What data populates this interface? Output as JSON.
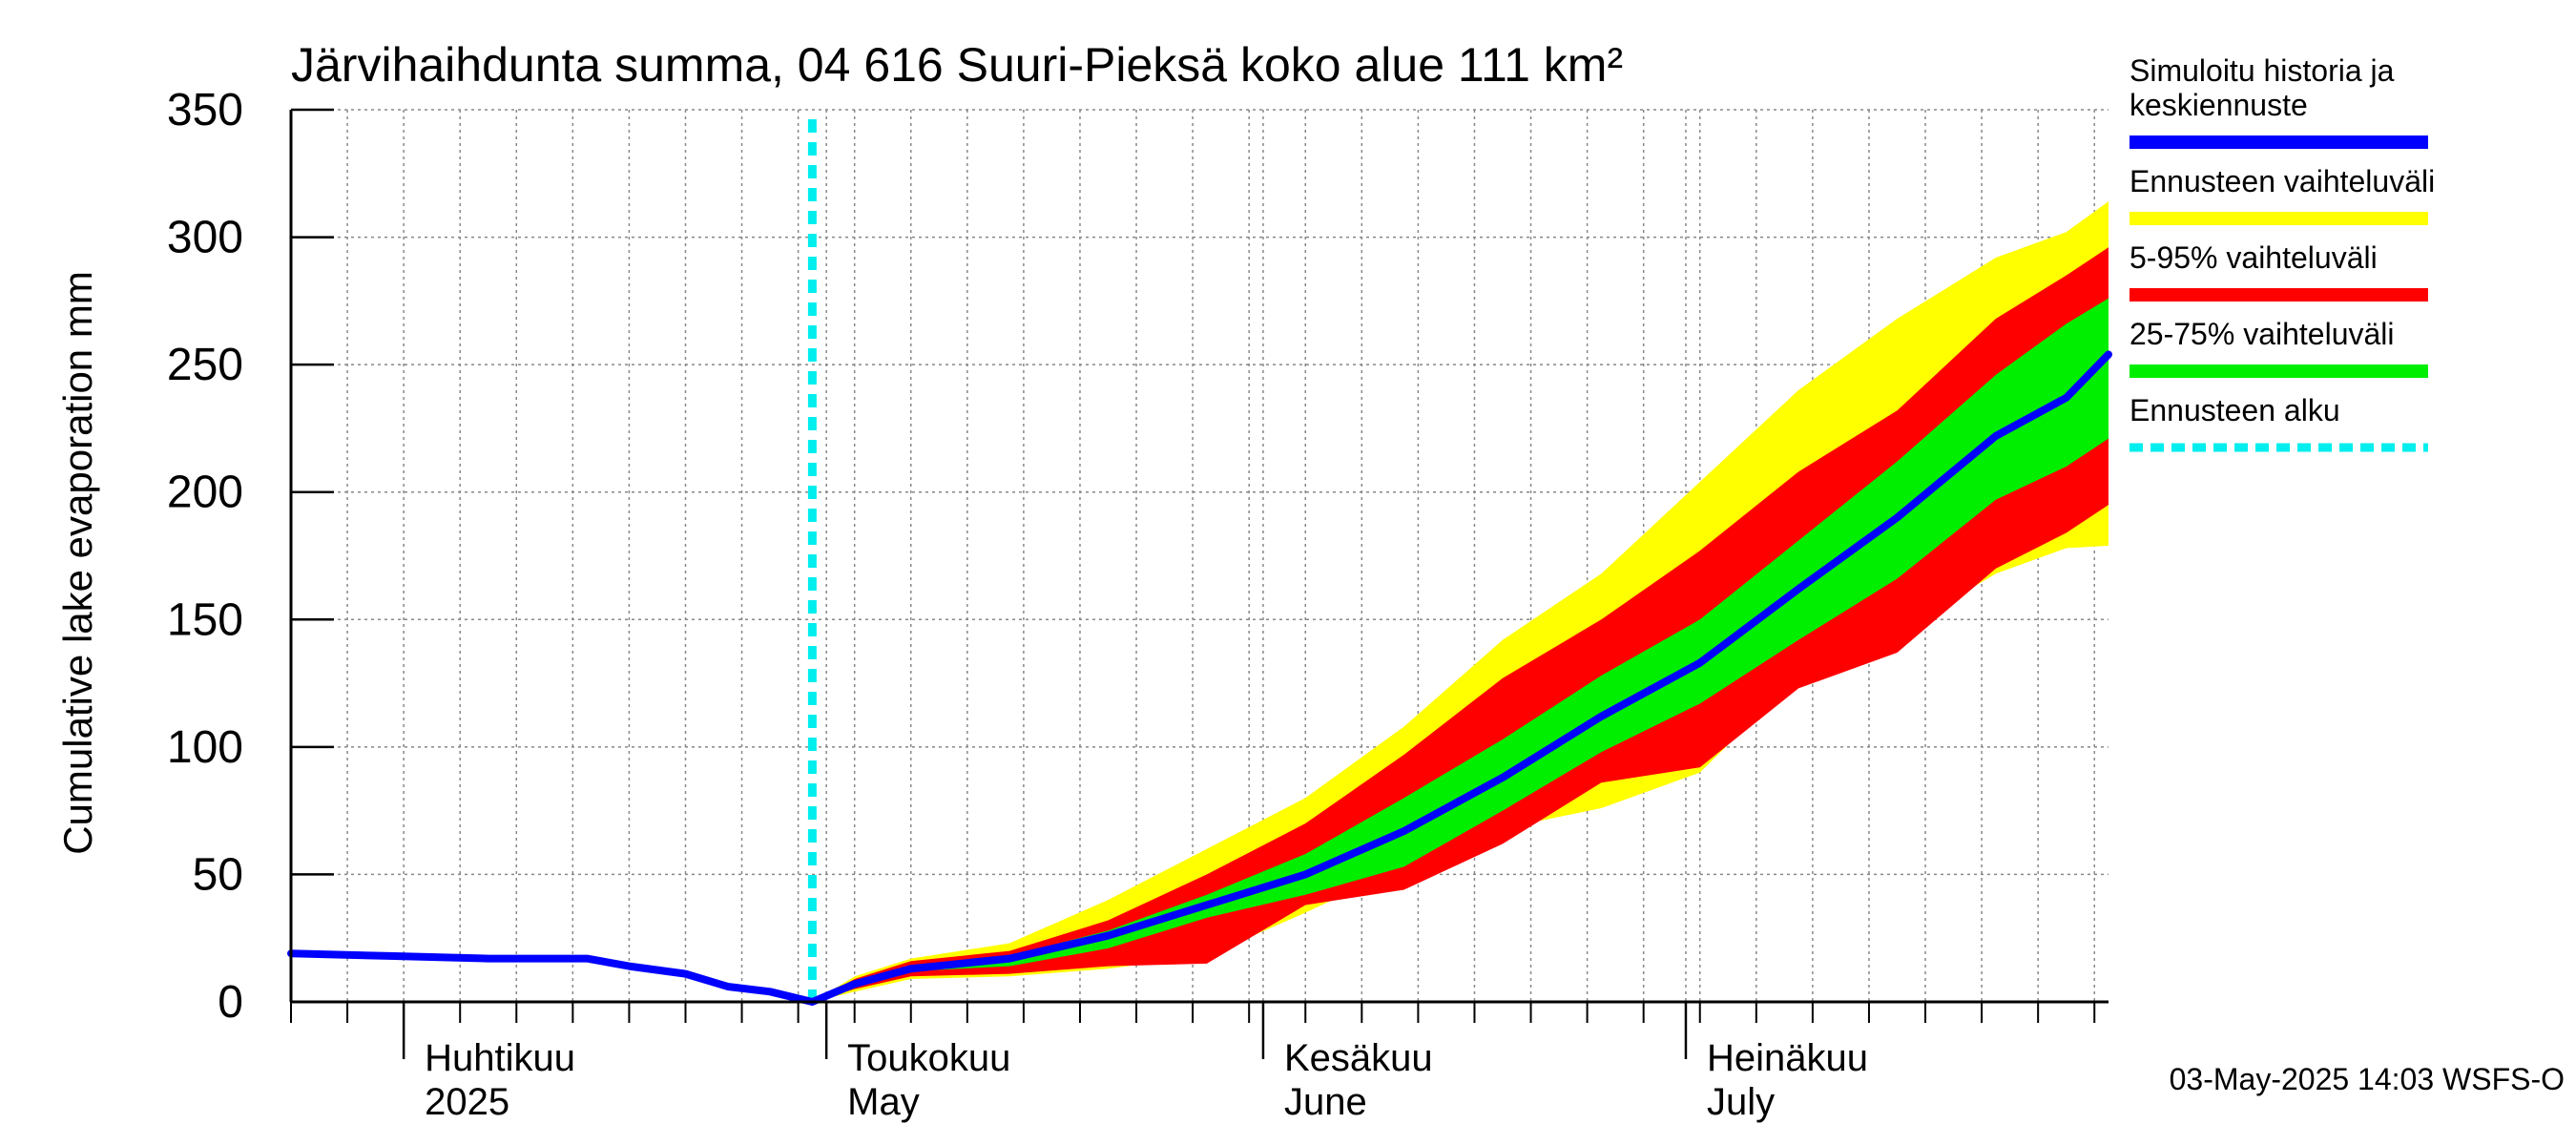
{
  "chart_data": {
    "type": "area",
    "title": "Järvihaihdunta summa, 04 616 Suuri-Pieksä koko alue 111 km²",
    "ylabel": "Cumulative lake evaporation   mm",
    "xlabel": "",
    "ylim": [
      0,
      350
    ],
    "yticks": [
      0,
      50,
      100,
      150,
      200,
      250,
      300,
      350
    ],
    "xlim": [
      "2025-03-24",
      "2025-07-31"
    ],
    "grid": true,
    "legend_position": "right",
    "month_labels": [
      {
        "date": "2025-04-01",
        "fi": "Huhtikuu",
        "en": "2025"
      },
      {
        "date": "2025-05-01",
        "fi": "Toukokuu",
        "en": "May"
      },
      {
        "date": "2025-06-01",
        "fi": "Kesäkuu",
        "en": "June"
      },
      {
        "date": "2025-07-01",
        "fi": "Heinäkuu",
        "en": "July"
      }
    ],
    "forecast_start": "2025-04-30",
    "legend": [
      {
        "label": "Simuloitu historia ja keskiennuste",
        "lines": [
          "Simuloitu historia ja",
          "keskiennuste"
        ],
        "color": "#0000ff",
        "style": "solid"
      },
      {
        "label": "Ennusteen vaihteluväli",
        "lines": [
          "Ennusteen vaihteluväli"
        ],
        "color": "#ffff00",
        "style": "solid"
      },
      {
        "label": "5-95% vaihteluväli",
        "lines": [
          "5-95% vaihteluväli"
        ],
        "color": "#ff0000",
        "style": "solid"
      },
      {
        "label": "25-75% vaihteluväli",
        "lines": [
          "25-75% vaihteluväli"
        ],
        "color": "#00ee00",
        "style": "solid"
      },
      {
        "label": "Ennusteen alku",
        "lines": [
          "Ennusteen alku"
        ],
        "color": "#00eeee",
        "style": "dashed"
      }
    ],
    "x": [
      "2025-03-24",
      "2025-03-31",
      "2025-04-07",
      "2025-04-14",
      "2025-04-17",
      "2025-04-21",
      "2025-04-24",
      "2025-04-27",
      "2025-04-30",
      "2025-05-03",
      "2025-05-07",
      "2025-05-14",
      "2025-05-21",
      "2025-05-28",
      "2025-06-04",
      "2025-06-11",
      "2025-06-18",
      "2025-06-25",
      "2025-07-02",
      "2025-07-09",
      "2025-07-16",
      "2025-07-23",
      "2025-07-28",
      "2025-07-31"
    ],
    "series": [
      {
        "name": "Simuloitu historia ja keskiennuste",
        "color": "#0000ff",
        "values": [
          19,
          18,
          17,
          17,
          14,
          11,
          6,
          4,
          0,
          7,
          13,
          17,
          26,
          38,
          50,
          67,
          88,
          112,
          133,
          162,
          190,
          222,
          237,
          254
        ]
      },
      {
        "name": "Ennusteen vaihteluväli (max)",
        "color": "#ffff00",
        "values": [
          null,
          null,
          null,
          null,
          null,
          null,
          null,
          null,
          0,
          10,
          17,
          23,
          40,
          60,
          80,
          108,
          142,
          168,
          204,
          240,
          268,
          292,
          302,
          314
        ]
      },
      {
        "name": "Ennusteen vaihteluväli (min)",
        "color": "#ffff00",
        "values": [
          null,
          null,
          null,
          null,
          null,
          null,
          null,
          null,
          0,
          4,
          9,
          10,
          13,
          18,
          35,
          53,
          68,
          76,
          90,
          128,
          145,
          168,
          178,
          179
        ]
      },
      {
        "name": "5-95% vaihteluväli (upper)",
        "color": "#ff0000",
        "values": [
          null,
          null,
          null,
          null,
          null,
          null,
          null,
          null,
          0,
          9,
          16,
          20,
          32,
          50,
          70,
          97,
          127,
          150,
          177,
          208,
          232,
          268,
          285,
          296
        ]
      },
      {
        "name": "5-95% vaihteluväli (lower)",
        "color": "#ff0000",
        "values": [
          null,
          null,
          null,
          null,
          null,
          null,
          null,
          null,
          0,
          5,
          10,
          11,
          14,
          15,
          38,
          44,
          62,
          86,
          92,
          123,
          137,
          170,
          184,
          195
        ]
      },
      {
        "name": "25-75% vaihteluväli (upper)",
        "color": "#00ee00",
        "values": [
          null,
          null,
          null,
          null,
          null,
          null,
          null,
          null,
          0,
          8,
          14,
          18,
          28,
          42,
          58,
          80,
          103,
          128,
          150,
          181,
          212,
          246,
          266,
          276
        ]
      },
      {
        "name": "25-75% vaihteluväli (lower)",
        "color": "#00ee00",
        "values": [
          null,
          null,
          null,
          null,
          null,
          null,
          null,
          null,
          0,
          6,
          12,
          14,
          21,
          33,
          42,
          53,
          75,
          98,
          117,
          142,
          166,
          197,
          210,
          221
        ]
      }
    ]
  },
  "footer": {
    "timestamp": "03-May-2025 14:03 WSFS-O"
  }
}
